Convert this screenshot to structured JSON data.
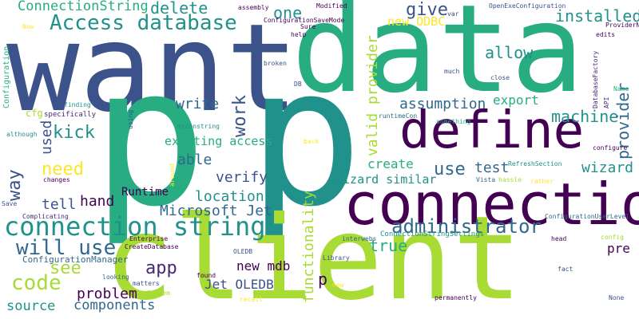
{
  "palette": {
    "dark_purple": "#440154",
    "indigo": "#3b528b",
    "teal": "#21918c",
    "green": "#27ad81",
    "lime": "#a8db34",
    "yellow": "#fde725",
    "slate": "#31688e",
    "navy": "#482878"
  },
  "words": {
    "want": "want",
    "data": "data",
    "p1": "p",
    "p2": "p",
    "client": "client",
    "connection": "connection",
    "define": "define",
    "connection_string": "connection string",
    "access_database": "Access database",
    "administrator": "administrator",
    "will_use": "will use",
    "code": "code",
    "give": "give",
    "installed": "installed",
    "delete": "delete",
    "one": "one",
    "connectionstring": "ConnectionString",
    "new_odbc": "new ODBC",
    "allow": "allow",
    "export": "export",
    "assumption": "assumption",
    "machine": "machine",
    "provider": "provider",
    "valid_provider": "valid provider",
    "write": "write",
    "work": "work",
    "kick": "kick",
    "need": "need",
    "used": "used",
    "way": "way",
    "existing_access": "existing access",
    "able": "able",
    "verify": "verify",
    "create": "create",
    "use": "use",
    "test": "test",
    "wizard": "wizard",
    "wizard_similar": "wizard similar",
    "tell": "tell",
    "hand": "hand",
    "runtime": "Runtime",
    "location": "location",
    "microsoft_jet": "Microsoft Jet",
    "functionality": "functionality",
    "true": "true",
    "pre": "pre",
    "app": "app",
    "see": "see",
    "new_mdb": "new mdb",
    "problem": "problem",
    "jet_oledb": "Jet OLEDB",
    "components": "components",
    "source": "source",
    "p3": "p",
    "configuration": "Configuration",
    "cfg": "cfg",
    "top": "top",
    "although": "although",
    "specifically": "specifically",
    "finding": "finding",
    "using": "using",
    "myconstring": "myconstring",
    "go": "go",
    "runtimecon": "runtimeCon",
    "back": "back",
    "something": "something",
    "configure": "configure",
    "refreshsection": "RefreshSection",
    "vista": "Vista",
    "hassle": "hassle",
    "rather": "rather",
    "configurationuserlevel": "ConfigurationUserLevel",
    "connectionstringsettings": "ConnectionStringSettings",
    "head": "head",
    "config": "config",
    "fact": "fact",
    "none": "None",
    "permanently": "permanently",
    "new_small": "new",
    "library": "Library",
    "interwebs": "interwebs",
    "oledb": "OLEDB",
    "found": "found",
    "recall": "recall",
    "system": "System",
    "matters": "matters",
    "looking": "looking",
    "configurationmanager": "ConfigurationManager",
    "enterprise": "Enterprise",
    "createdatabase": "CreateDatabase",
    "complicating": "Complicating",
    "add": "Add",
    "save": "Save",
    "changes": "changes",
    "around": "around",
    "now": "Now",
    "assembly": "assembly",
    "configurationsavemode": "ConfigurationSaveMode",
    "modified": "Modified",
    "sure": "Sure",
    "help": "help",
    "var": "var",
    "openexeconfiguration": "OpenExeConfiguration",
    "providername": "ProviderName",
    "edits": "edits",
    "much": "much",
    "broken": "broken",
    "db": "DB",
    "close": "close",
    "databasefactory": "DatabaseFactory",
    "api": "API",
    "name": "Name"
  }
}
